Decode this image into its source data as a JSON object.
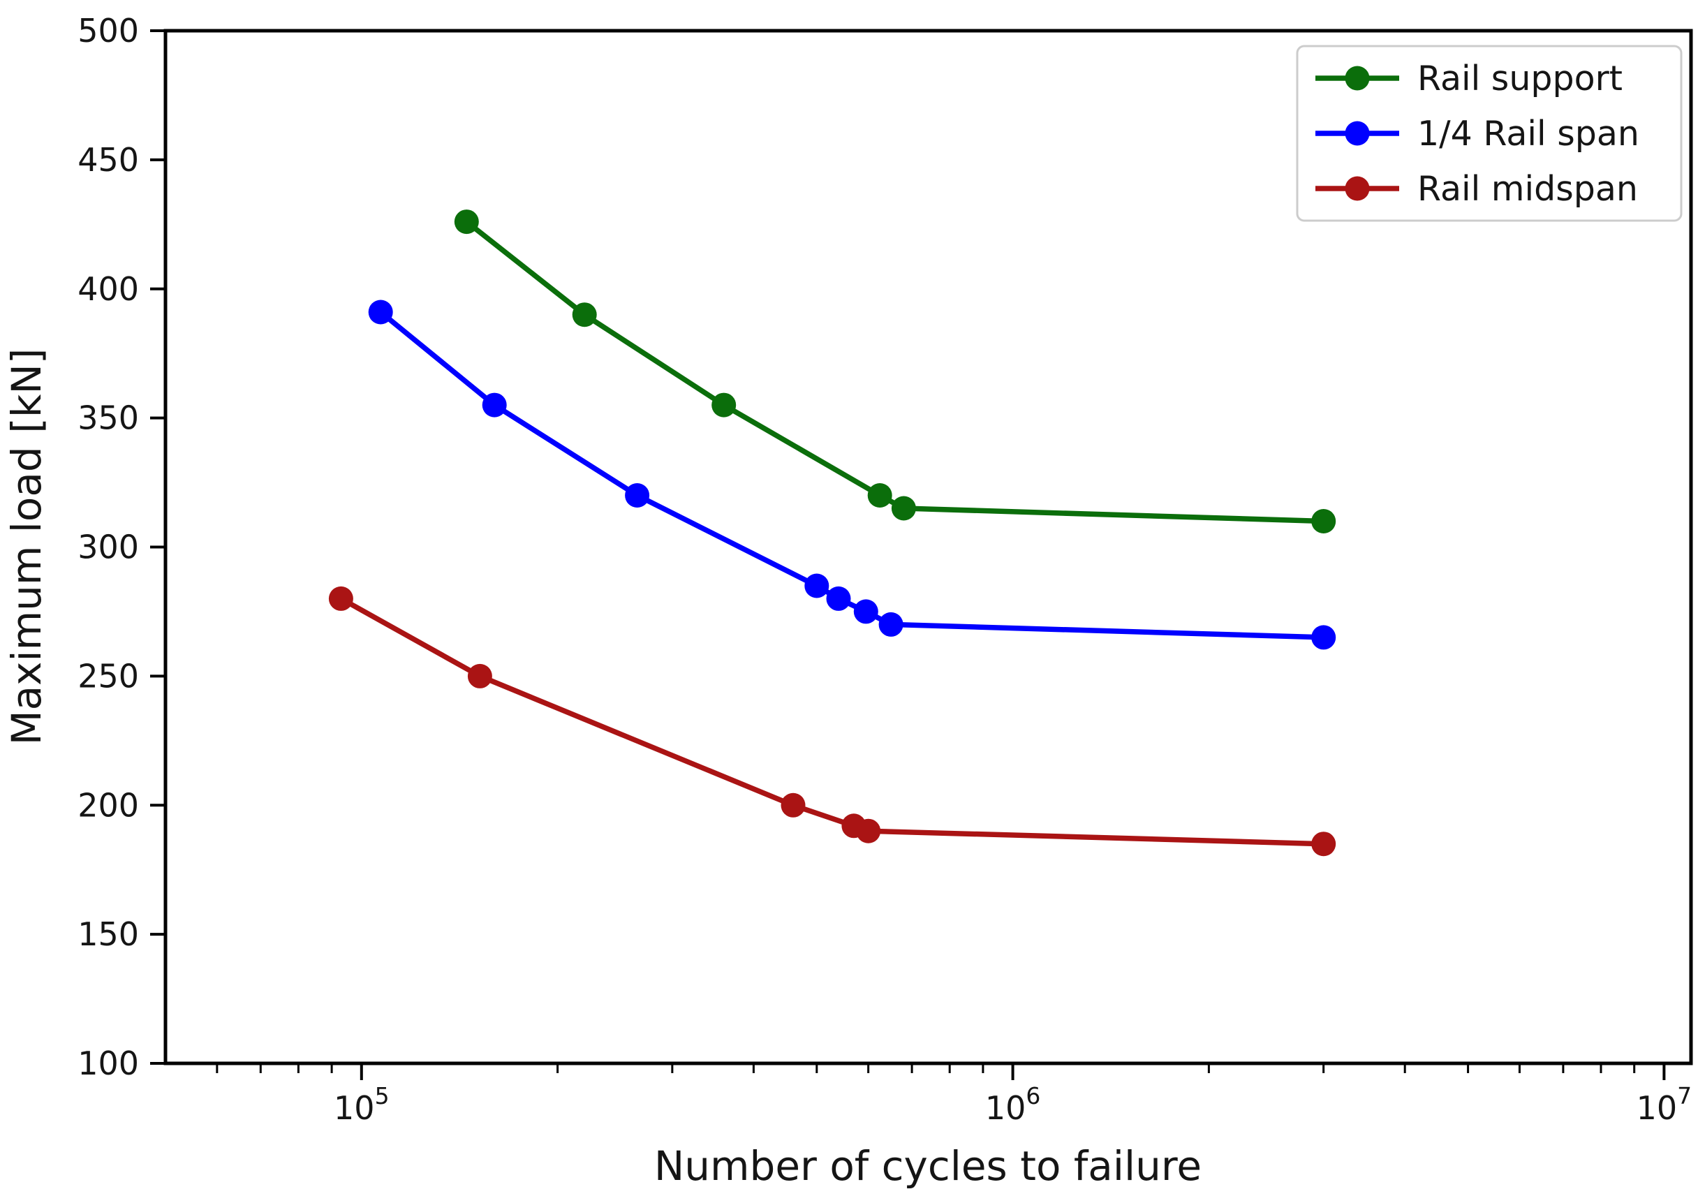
{
  "chart_data": {
    "type": "line",
    "title": "",
    "xlabel": "Number of cycles to failure",
    "ylabel": "Maximum load [kN]",
    "x_scale": "log",
    "xlim": [
      50000,
      11000000
    ],
    "ylim": [
      100,
      500
    ],
    "y_ticks": [
      100,
      150,
      200,
      250,
      300,
      350,
      400,
      450,
      500
    ],
    "x_major_ticks": [
      {
        "value": 100000,
        "label": "10^5"
      },
      {
        "value": 1000000,
        "label": "10^6"
      },
      {
        "value": 10000000,
        "label": "10^7"
      }
    ],
    "grid": false,
    "legend": {
      "position": "upper right",
      "entries": [
        "Rail support",
        "1/4 Rail span",
        "Rail midspan"
      ]
    },
    "series": [
      {
        "name": "Rail support",
        "color": "#0b6e0b",
        "marker": "circle",
        "points": [
          {
            "x": 145000,
            "y": 426
          },
          {
            "x": 220000,
            "y": 390
          },
          {
            "x": 360000,
            "y": 355
          },
          {
            "x": 625000,
            "y": 320
          },
          {
            "x": 680000,
            "y": 315
          },
          {
            "x": 3000000,
            "y": 310
          }
        ]
      },
      {
        "name": "1/4 Rail span",
        "color": "#0000ff",
        "marker": "circle",
        "points": [
          {
            "x": 107000,
            "y": 391
          },
          {
            "x": 160000,
            "y": 355
          },
          {
            "x": 265000,
            "y": 320
          },
          {
            "x": 500000,
            "y": 285
          },
          {
            "x": 540000,
            "y": 280
          },
          {
            "x": 595000,
            "y": 275
          },
          {
            "x": 650000,
            "y": 270
          },
          {
            "x": 3000000,
            "y": 265
          }
        ]
      },
      {
        "name": "Rail midspan",
        "color": "#aa1414",
        "marker": "circle",
        "points": [
          {
            "x": 93000,
            "y": 280
          },
          {
            "x": 152000,
            "y": 250
          },
          {
            "x": 460000,
            "y": 200
          },
          {
            "x": 570000,
            "y": 192
          },
          {
            "x": 600000,
            "y": 190
          },
          {
            "x": 3000000,
            "y": 185
          }
        ]
      }
    ]
  }
}
